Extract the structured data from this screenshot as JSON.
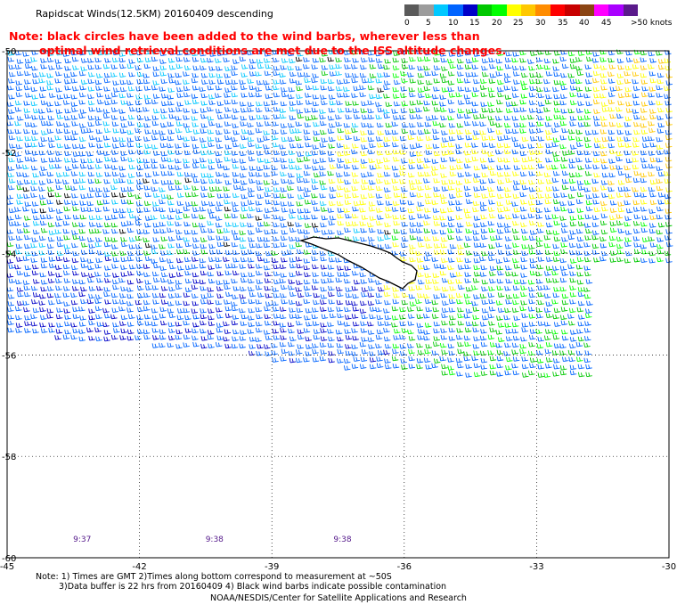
{
  "title": "Rapidscat Winds(12.5KM) 20160409 descending",
  "note": {
    "line1": "Note: black circles have been added to the wind barbs, wherever less than",
    "line2": "optimal wind retrieval conditions are met due to the ISS altitude changes."
  },
  "colorbar": {
    "colors": [
      "#5a5a5a",
      "#9c9c9c",
      "#00c8ff",
      "#0064ff",
      "#0000c8",
      "#00c800",
      "#00ff00",
      "#ffff00",
      "#ffc800",
      "#ff8c00",
      "#ff0000",
      "#c80000",
      "#8b4513",
      "#ff00ff",
      "#aa00ff",
      "#5a1a8b"
    ],
    "labels": [
      "0",
      "5",
      "10",
      "15",
      "20",
      "25",
      "30",
      "35",
      "40",
      "45",
      ">50 knots"
    ]
  },
  "map": {
    "lon_ticks": [
      "-45",
      "-42",
      "-39",
      "-36",
      "-33",
      "-30"
    ],
    "lat_ticks": [
      "-50",
      "-52",
      "-54",
      "-56",
      "-58",
      "-60"
    ],
    "lon_range": [
      -45,
      -30
    ],
    "lat_range": [
      -60,
      -50
    ],
    "swath_times": [
      "9:37",
      "9:38",
      "9:38"
    ],
    "wind_speed_units": "knots",
    "grid": "dotted",
    "land": "South Georgia island, outlined in black"
  },
  "footnotes": {
    "line1": "Note: 1) Times are GMT 2)Times along bottom correspond to measurement at ~50S",
    "line2": "3)Data buffer is 22 hrs from 20160409 4) Black wind barbs indicate possible contamination"
  },
  "credit": "NOAA/NESDIS/Center for Satellite Applications and Research"
}
